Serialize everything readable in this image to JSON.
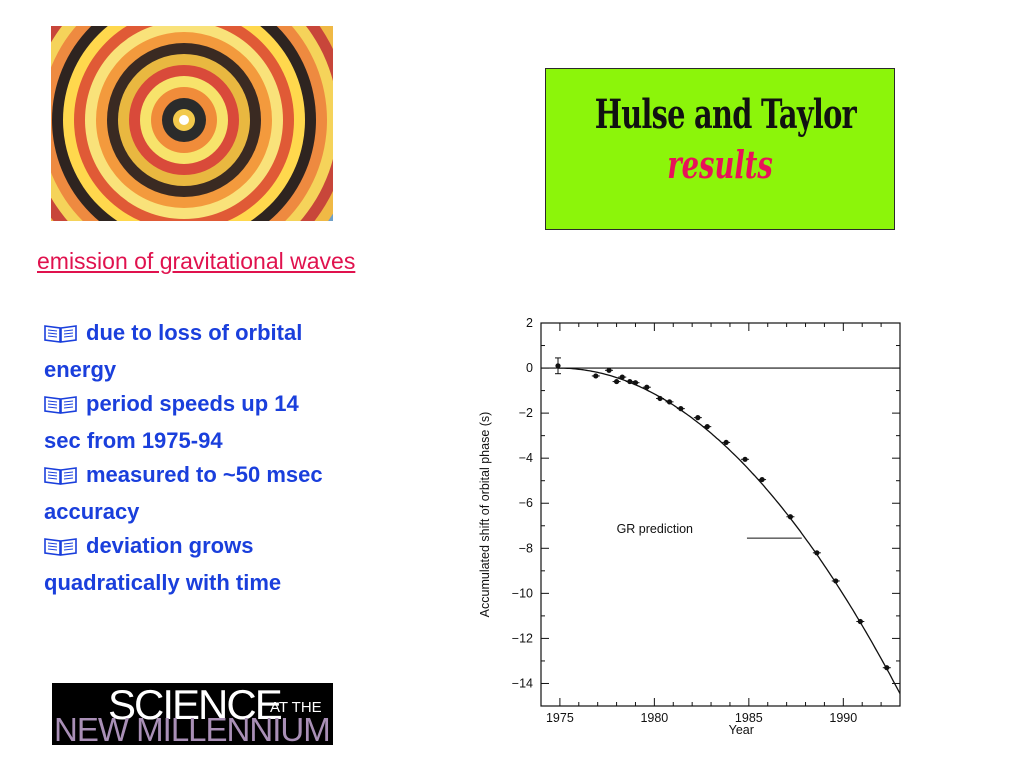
{
  "slide": {
    "title_line1": "Hulse and Taylor",
    "title_line2": "results",
    "heading": "emission of gravitational waves",
    "bullets": [
      {
        "line1": "due to loss of orbital",
        "line2": "energy"
      },
      {
        "line1": "period speeds up 14",
        "line2": "sec from 1975-94"
      },
      {
        "line1": "measured to ~50 msec",
        "line2": "accuracy"
      },
      {
        "line1": "deviation grows",
        "line2": "quadratically with time"
      }
    ],
    "logo": {
      "line1": "SCIENCE",
      "line1b": "AT THE",
      "line2": "NEW MILLENNIUM"
    },
    "colors": {
      "title_bg": "#8cf50a",
      "heading": "#e0124e",
      "bullets": "#1a3fdc",
      "results": "#e8125a"
    },
    "bullet_icon": "open-book-icon"
  },
  "chart_data": {
    "type": "scatter",
    "xlabel": "Year",
    "ylabel": "Accumulated shift of orbital phase (s)",
    "xlim": [
      1974,
      1993
    ],
    "ylim": [
      -15,
      2
    ],
    "xticks": [
      1975,
      1980,
      1985,
      1990
    ],
    "yticks": [
      2,
      0,
      -2,
      -4,
      -6,
      -8,
      -10,
      -12,
      -14
    ],
    "ytick_labels": [
      "2",
      "0",
      "−2",
      "−4",
      "−6",
      "−8",
      "−10",
      "−12",
      "−14"
    ],
    "annotation": "GR prediction",
    "series": [
      {
        "points": [
          {
            "x": 1974.9,
            "y": 0.1,
            "err": 0.35
          },
          {
            "x": 1976.9,
            "y": -0.35
          },
          {
            "x": 1977.6,
            "y": -0.1
          },
          {
            "x": 1978.0,
            "y": -0.6
          },
          {
            "x": 1978.3,
            "y": -0.4
          },
          {
            "x": 1978.7,
            "y": -0.6
          },
          {
            "x": 1979.0,
            "y": -0.65
          },
          {
            "x": 1979.6,
            "y": -0.85
          },
          {
            "x": 1980.3,
            "y": -1.35
          },
          {
            "x": 1980.8,
            "y": -1.5
          },
          {
            "x": 1981.4,
            "y": -1.8
          },
          {
            "x": 1982.3,
            "y": -2.2
          },
          {
            "x": 1982.8,
            "y": -2.6
          },
          {
            "x": 1983.8,
            "y": -3.3
          },
          {
            "x": 1984.8,
            "y": -4.05
          },
          {
            "x": 1985.7,
            "y": -4.95
          },
          {
            "x": 1987.2,
            "y": -6.6
          },
          {
            "x": 1988.6,
            "y": -8.2
          },
          {
            "x": 1989.6,
            "y": -9.45
          },
          {
            "x": 1990.9,
            "y": -11.25
          },
          {
            "x": 1992.3,
            "y": -13.3
          }
        ]
      }
    ],
    "curve": {
      "x0": 1974.9,
      "coef": -0.0441
    },
    "reference_line_y": 0
  }
}
